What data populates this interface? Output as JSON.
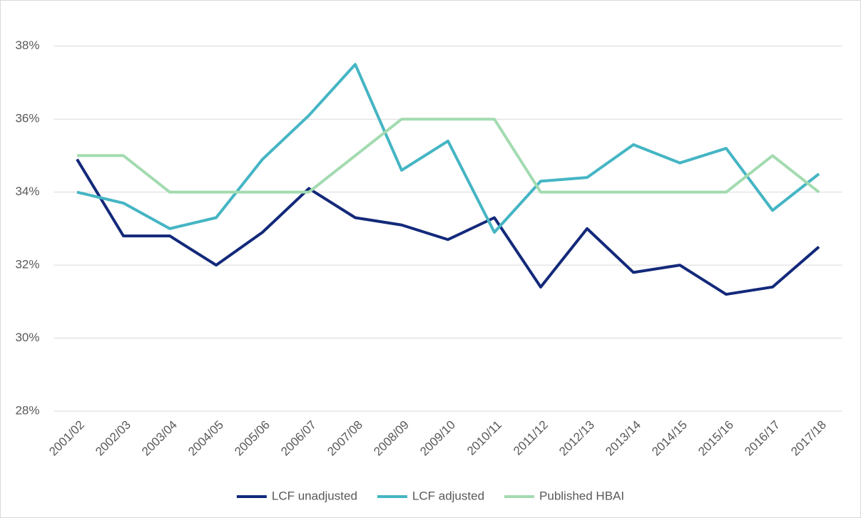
{
  "chart_data": {
    "type": "line",
    "categories": [
      "2001/02",
      "2002/03",
      "2003/04",
      "2004/05",
      "2005/06",
      "2006/07",
      "2007/08",
      "2008/09",
      "2009/10",
      "2010/11",
      "2011/12",
      "2012/13",
      "2013/14",
      "2014/15",
      "2015/16",
      "2016/17",
      "2017/18"
    ],
    "series": [
      {
        "name": "LCF unadjusted",
        "color": "#13297a",
        "values": [
          34.9,
          32.8,
          32.8,
          32.0,
          32.9,
          34.1,
          33.3,
          33.1,
          32.7,
          33.3,
          31.4,
          33.0,
          31.8,
          32.0,
          31.2,
          31.4,
          32.5
        ]
      },
      {
        "name": "LCF adjusted",
        "color": "#45b5c4",
        "values": [
          34.0,
          33.7,
          33.0,
          33.3,
          34.9,
          36.1,
          37.5,
          34.6,
          35.4,
          32.9,
          34.3,
          34.4,
          35.3,
          34.8,
          35.2,
          33.5,
          34.5
        ]
      },
      {
        "name": "Published HBAI",
        "color": "#a3dbb0",
        "values": [
          35,
          35,
          34,
          34,
          34,
          34,
          35,
          36,
          36,
          36,
          34,
          34,
          34,
          34,
          34,
          35,
          34
        ]
      }
    ],
    "ylim": [
      28,
      38.6
    ],
    "yticks": [
      {
        "value": 28,
        "label": "28%"
      },
      {
        "value": 30,
        "label": "30%"
      },
      {
        "value": 32,
        "label": "32%"
      },
      {
        "value": 34,
        "label": "34%"
      },
      {
        "value": 36,
        "label": "36%"
      },
      {
        "value": 38,
        "label": "38%"
      }
    ],
    "grid": true,
    "legend": "bottom"
  }
}
